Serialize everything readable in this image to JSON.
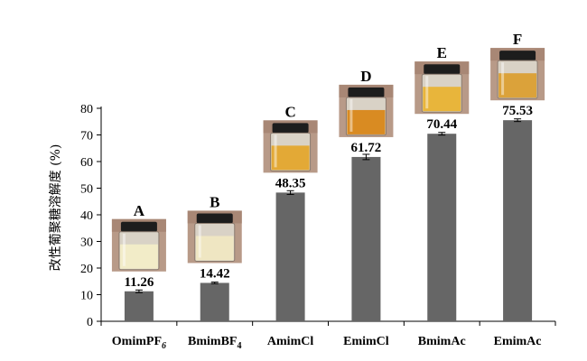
{
  "chart_data": {
    "type": "bar",
    "ylabel": "改性葡聚糖溶解度 (%)",
    "ylim": [
      0,
      80
    ],
    "yticks": [
      0,
      10,
      20,
      30,
      40,
      50,
      60,
      70,
      80
    ],
    "categories": [
      {
        "base": "OmimPF",
        "sub": "6",
        "sub_italic": true
      },
      {
        "base": "BmimBF",
        "sub": "4",
        "sub_italic": false
      },
      {
        "base": "AmimCl",
        "sub": "",
        "sub_italic": false
      },
      {
        "base": "EmimCl",
        "sub": "",
        "sub_italic": false
      },
      {
        "base": "BmimAc",
        "sub": "",
        "sub_italic": false
      },
      {
        "base": "EmimAc",
        "sub": "",
        "sub_italic": false
      }
    ],
    "values": [
      11.26,
      14.42,
      48.35,
      61.72,
      70.44,
      75.53
    ],
    "value_labels": [
      "11.26",
      "14.42",
      "48.35",
      "61.72",
      "70.44",
      "75.53"
    ],
    "errors": [
      0.5,
      0.3,
      0.7,
      1.0,
      0.5,
      0.5
    ],
    "photo_labels": [
      "A",
      "B",
      "C",
      "D",
      "E",
      "F"
    ],
    "photo_liquid_colors": [
      "#f2ecc8",
      "#efe6c2",
      "#e3a936",
      "#d98b22",
      "#e8b53b",
      "#dba23a"
    ],
    "bar_color": "#666666"
  }
}
